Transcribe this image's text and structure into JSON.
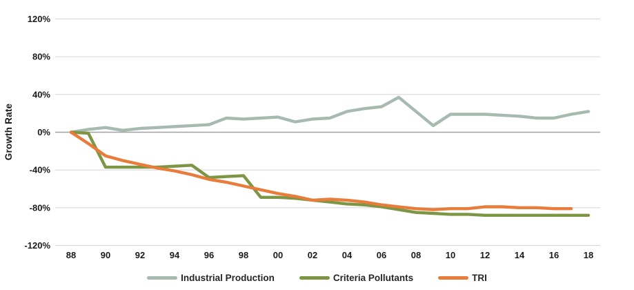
{
  "chart_data": {
    "type": "line",
    "title": "",
    "xlabel": "",
    "ylabel": "Growth Rate",
    "grid": true,
    "legend_position": "bottom",
    "ylim": [
      -120,
      120
    ],
    "y_ticks": [
      120,
      80,
      40,
      0,
      -40,
      -80,
      -120
    ],
    "y_tick_labels": [
      "120%",
      "80%",
      "40%",
      "0%",
      "-40%",
      "-80%",
      "-120%"
    ],
    "x_tick_years": [
      1988,
      1990,
      1992,
      1994,
      1996,
      1998,
      2000,
      2002,
      2004,
      2006,
      2008,
      2010,
      2012,
      2014,
      2016,
      2018
    ],
    "x_tick_labels": [
      "88",
      "90",
      "92",
      "94",
      "96",
      "98",
      "00",
      "02",
      "04",
      "06",
      "08",
      "10",
      "12",
      "14",
      "16",
      "18"
    ],
    "x_unit": "year (1988-2018)",
    "series": [
      {
        "name": "Industrial Production",
        "color": "#a6bab0",
        "start_year": 1988,
        "values": [
          0,
          3,
          5,
          2,
          4,
          5,
          6,
          7,
          8,
          15,
          14,
          15,
          16,
          11,
          14,
          15,
          22,
          25,
          27,
          37,
          22,
          7,
          19,
          19,
          19,
          18,
          17,
          15,
          15,
          19,
          22
        ]
      },
      {
        "name": "Criteria Pollutants",
        "color": "#7d9645",
        "start_year": 1988,
        "values": [
          0,
          -1,
          -37,
          -37,
          -37,
          -37,
          -36,
          -35,
          -48,
          -47,
          -46,
          -69,
          -69,
          -70,
          -72,
          -74,
          -76,
          -77,
          -79,
          -82,
          -85,
          -86,
          -87,
          -87,
          -88,
          -88,
          -88,
          -88,
          -88,
          -88,
          -88
        ]
      },
      {
        "name": "TRI",
        "color": "#e87c3b",
        "start_year": 1988,
        "values": [
          0,
          -12,
          -25,
          -30,
          -34,
          -38,
          -41,
          -45,
          -50,
          -53,
          -57,
          -61,
          -65,
          -68,
          -72,
          -71,
          -72,
          -74,
          -77,
          -79,
          -81,
          -82,
          -81,
          -81,
          -79,
          -79,
          -80,
          -80,
          -81,
          -81
        ]
      }
    ],
    "colors": {
      "gridline": "#d9d9d9",
      "zero_line": "#a0a0a0",
      "tick_text": "#1a1a1a",
      "legend_text": "#262626"
    }
  }
}
